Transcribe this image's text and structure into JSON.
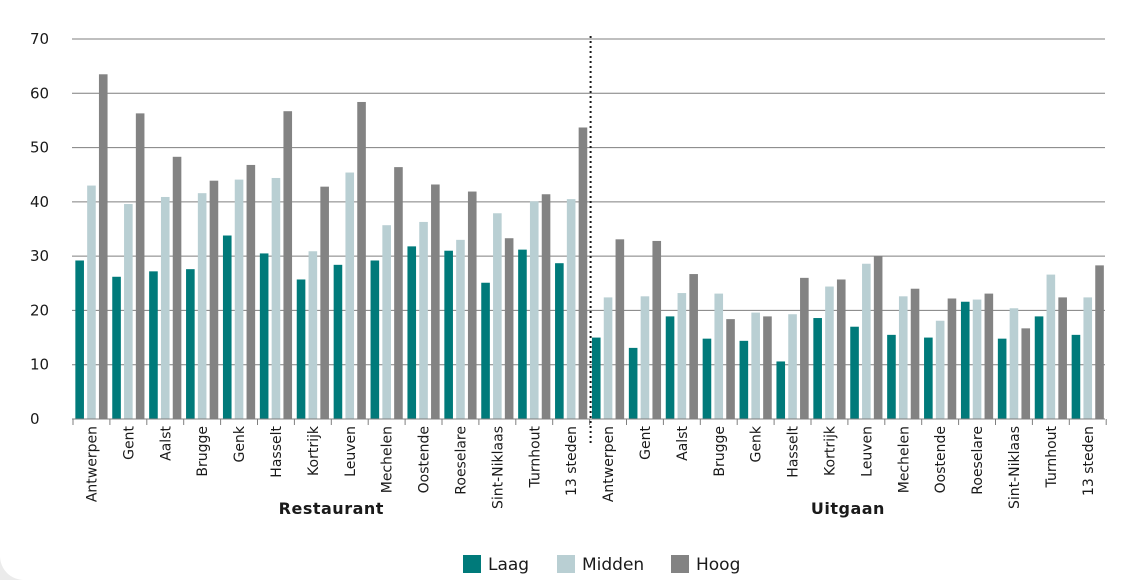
{
  "chart_data": {
    "type": "bar",
    "ylim": [
      0,
      70
    ],
    "yticks": [
      0,
      10,
      20,
      30,
      40,
      50,
      60,
      70
    ],
    "grid": true,
    "legend_position": "bottom-center",
    "colors": {
      "Laag": "#007a7a",
      "Midden": "#b9cfd3",
      "Hoog": "#838383",
      "grid": "#7f7f7f",
      "axis": "#7f7f7f"
    },
    "groups": [
      {
        "label": "Restaurant",
        "categories": [
          "Antwerpen",
          "Gent",
          "Aalst",
          "Brugge",
          "Genk",
          "Hasselt",
          "Kortrijk",
          "Leuven",
          "Mechelen",
          "Oostende",
          "Roeselare",
          "Sint-Niklaas",
          "Turnhout",
          "13 steden"
        ],
        "series": [
          {
            "name": "Laag",
            "values": [
              29.2,
              26.2,
              27.2,
              27.6,
              33.8,
              30.5,
              25.7,
              28.4,
              29.2,
              31.8,
              31.0,
              25.1,
              31.2,
              28.7
            ]
          },
          {
            "name": "Midden",
            "values": [
              43.0,
              39.6,
              40.9,
              41.6,
              44.1,
              44.4,
              30.9,
              45.4,
              35.7,
              36.3,
              33.0,
              37.9,
              40.1,
              40.5
            ]
          },
          {
            "name": "Hoog",
            "values": [
              63.5,
              56.3,
              48.3,
              43.9,
              46.8,
              56.7,
              42.8,
              58.4,
              46.4,
              43.2,
              41.9,
              33.3,
              41.4,
              53.7
            ]
          }
        ]
      },
      {
        "label": "Uitgaan",
        "categories": [
          "Antwerpen",
          "Gent",
          "Aalst",
          "Brugge",
          "Genk",
          "Hasselt",
          "Kortrijk",
          "Leuven",
          "Mechelen",
          "Oostende",
          "Roeselare",
          "Sint-Niklaas",
          "Turnhout",
          "13 steden"
        ],
        "series": [
          {
            "name": "Laag",
            "values": [
              15.0,
              13.1,
              18.9,
              14.8,
              14.4,
              10.6,
              18.6,
              17.0,
              15.5,
              15.0,
              21.6,
              14.8,
              18.9,
              15.5
            ]
          },
          {
            "name": "Midden",
            "values": [
              22.4,
              22.6,
              23.2,
              23.1,
              19.6,
              19.3,
              24.4,
              28.6,
              22.6,
              18.1,
              22.0,
              20.4,
              26.6,
              22.4
            ]
          },
          {
            "name": "Hoog",
            "values": [
              33.1,
              32.8,
              26.7,
              18.4,
              18.9,
              26.0,
              25.7,
              30.0,
              24.0,
              22.2,
              23.1,
              16.7,
              22.4,
              28.3
            ]
          }
        ]
      }
    ],
    "legend": [
      "Laag",
      "Midden",
      "Hoog"
    ]
  }
}
